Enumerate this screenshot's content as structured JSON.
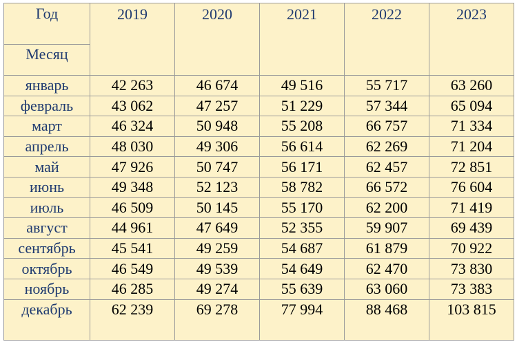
{
  "header": {
    "year_label": "Год",
    "month_label": "Месяц"
  },
  "table": {
    "columns": [
      "2019",
      "2020",
      "2021",
      "2022",
      "2023"
    ],
    "rows": [
      [
        "январь",
        "42 263",
        "46 674",
        "49 516",
        "55 717",
        "63 260"
      ],
      [
        "февраль",
        "43 062",
        "47 257",
        "51 229",
        "57 344",
        "65 094"
      ],
      [
        "март",
        "46 324",
        "50 948",
        "55 208",
        "66 757",
        "71 334"
      ],
      [
        "апрель",
        "48 030",
        "49 306",
        "56 614",
        "62 269",
        "71 204"
      ],
      [
        "май",
        "47 926",
        "50 747",
        "56 171",
        "62 457",
        "72 851"
      ],
      [
        "июнь",
        "49 348",
        "52 123",
        "58 782",
        "66 572",
        "76 604"
      ],
      [
        "июль",
        "46 509",
        "50 145",
        "55 170",
        "62 200",
        "71 419"
      ],
      [
        "август",
        "44 961",
        "47 649",
        "52 355",
        "59 907",
        "69 439"
      ],
      [
        "сентябрь",
        "45 541",
        "49 259",
        "54 687",
        "61 879",
        "70 922"
      ],
      [
        "октябрь",
        "46 549",
        "49 539",
        "54 649",
        "62 470",
        "73 830"
      ],
      [
        "ноябрь",
        "46 285",
        "49 274",
        "55 639",
        "63 060",
        "73 383"
      ],
      [
        "декабрь",
        "62 239",
        "69 278",
        "77 994",
        "88 468",
        "103 815"
      ]
    ]
  }
}
